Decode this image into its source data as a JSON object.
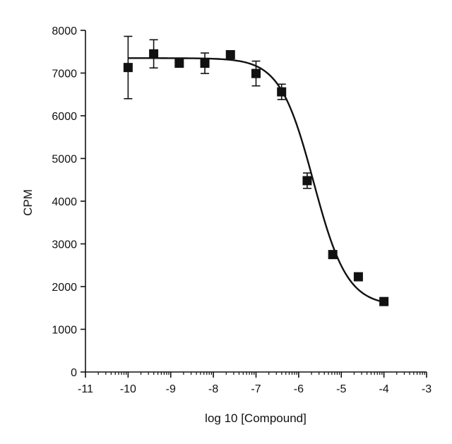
{
  "chart_data": {
    "type": "scatter",
    "title": "",
    "xlabel": "log 10 [Compound]",
    "ylabel": "CPM",
    "xlim": [
      -11,
      -3
    ],
    "ylim": [
      0,
      8000
    ],
    "x_ticks": [
      -11,
      -10,
      -9,
      -8,
      -7,
      -6,
      -5,
      -4,
      -3
    ],
    "x_tick_labels": [
      "-11",
      "-10",
      "-9",
      "-8",
      "-7",
      "-6",
      "-5",
      "-4",
      "-3"
    ],
    "y_ticks": [
      0,
      1000,
      2000,
      3000,
      4000,
      5000,
      6000,
      7000,
      8000
    ],
    "y_tick_labels": [
      "0",
      "1000",
      "2000",
      "3000",
      "4000",
      "5000",
      "6000",
      "7000",
      "8000"
    ],
    "grid": false,
    "legend": "none",
    "marker_color": "#111111",
    "series": [
      {
        "marker": "square",
        "points": [
          {
            "x": -10.0,
            "y": 7130,
            "err": 730
          },
          {
            "x": -9.4,
            "y": 7450,
            "err": 330
          },
          {
            "x": -8.8,
            "y": 7230,
            "err": 0
          },
          {
            "x": -8.2,
            "y": 7230,
            "err": 240
          },
          {
            "x": -7.6,
            "y": 7430,
            "err": 0
          },
          {
            "x": -7.0,
            "y": 6990,
            "err": 290
          },
          {
            "x": -6.4,
            "y": 6560,
            "err": 180
          },
          {
            "x": -5.8,
            "y": 4480,
            "err": 180
          },
          {
            "x": -5.2,
            "y": 2750,
            "err": 0
          },
          {
            "x": -4.6,
            "y": 2230,
            "err": 0
          },
          {
            "x": -4.0,
            "y": 1650,
            "err": 0
          }
        ]
      }
    ],
    "fit_curve": {
      "type": "sigmoid",
      "top": 7350,
      "bottom": 1550,
      "log_ec50": -5.65,
      "hill": 1.1,
      "x_range": [
        -10.0,
        -4.0
      ]
    }
  }
}
